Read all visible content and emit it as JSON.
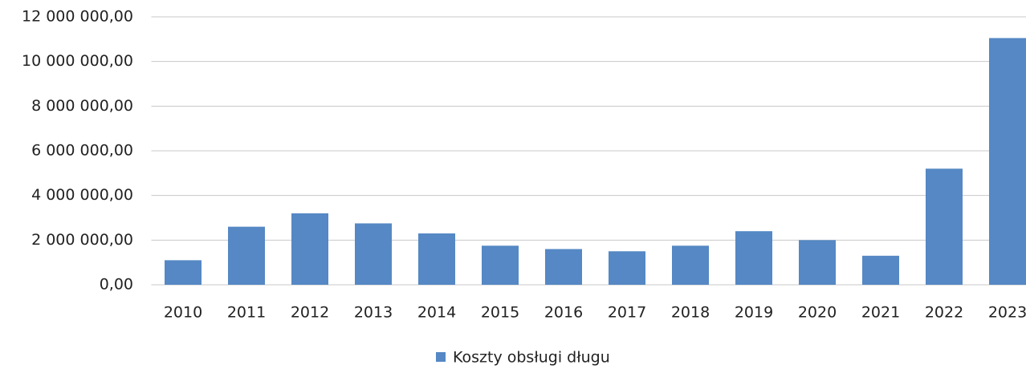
{
  "chart_data": {
    "type": "bar",
    "categories": [
      "2010",
      "2011",
      "2012",
      "2013",
      "2014",
      "2015",
      "2016",
      "2017",
      "2018",
      "2019",
      "2020",
      "2021",
      "2022",
      "2023"
    ],
    "series": [
      {
        "name": "Koszty obsługi długu",
        "color": "#5588c4",
        "values": [
          1100000,
          2600000,
          3200000,
          2750000,
          2300000,
          1750000,
          1600000,
          1500000,
          1750000,
          2400000,
          2000000,
          1300000,
          5200000,
          11050000
        ]
      }
    ],
    "ylim": [
      0,
      12000000
    ],
    "yticks": [
      {
        "value": 0,
        "label": "0,00"
      },
      {
        "value": 2000000,
        "label": "2 000 000,00"
      },
      {
        "value": 4000000,
        "label": "4 000 000,00"
      },
      {
        "value": 6000000,
        "label": "6 000 000,00"
      },
      {
        "value": 8000000,
        "label": "8 000 000,00"
      },
      {
        "value": 10000000,
        "label": "10 000 000,00"
      },
      {
        "value": 12000000,
        "label": "12 000 000,00"
      }
    ],
    "grid": true,
    "legend": "bottom"
  }
}
